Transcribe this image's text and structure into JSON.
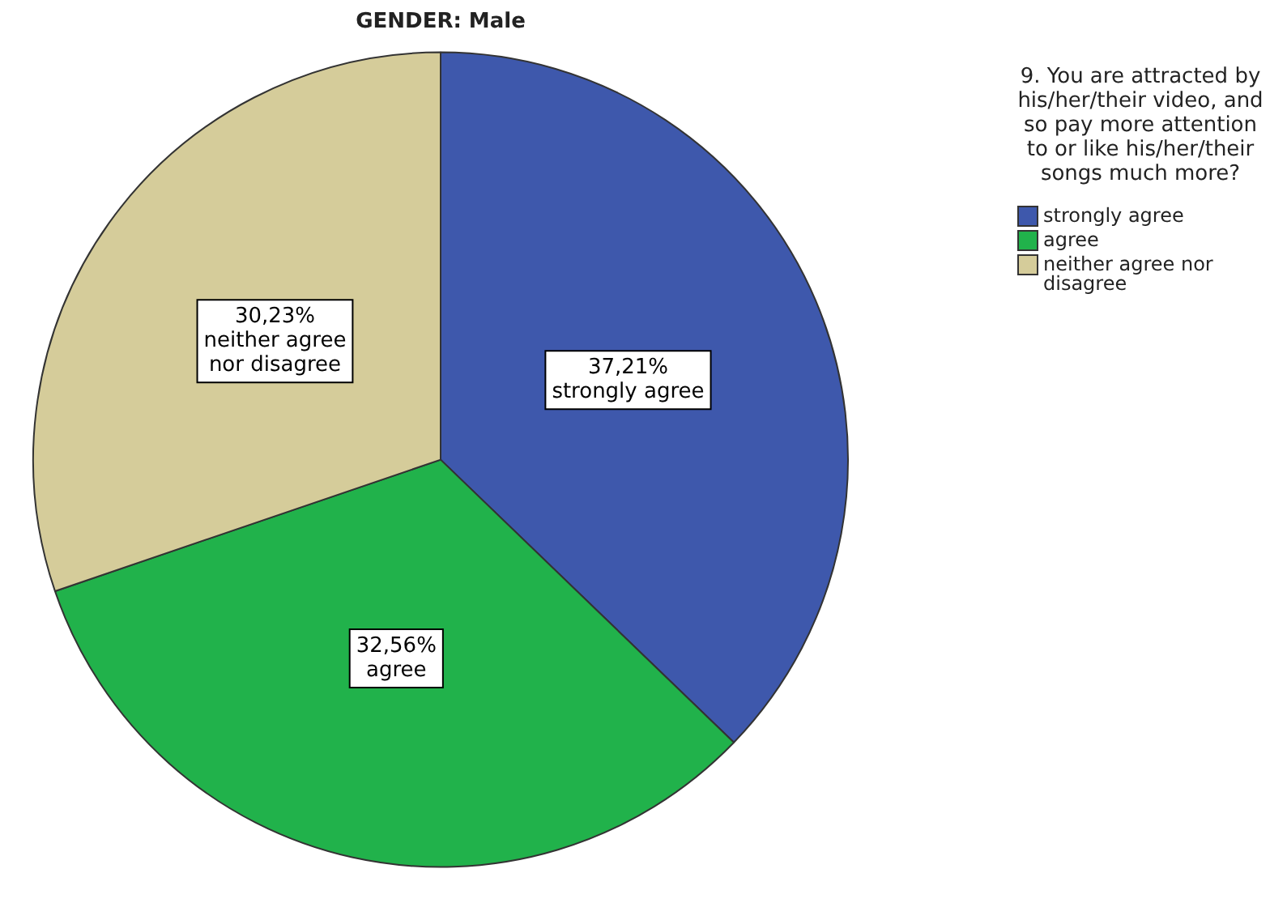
{
  "chart_data": {
    "type": "pie",
    "title": "GENDER: Male",
    "legend_title": "9. You are attracted by his/her/their video, and so pay more attention to or like his/her/their songs much more?",
    "categories": [
      "strongly agree",
      "agree",
      "neither agree nor disagree"
    ],
    "values": [
      37.21,
      32.56,
      30.23
    ],
    "colors": [
      "#3e58ac",
      "#21b24b",
      "#d5cc9a"
    ],
    "value_labels": [
      "37,21%",
      "32,56%",
      "30,23%"
    ],
    "legend": "right"
  }
}
